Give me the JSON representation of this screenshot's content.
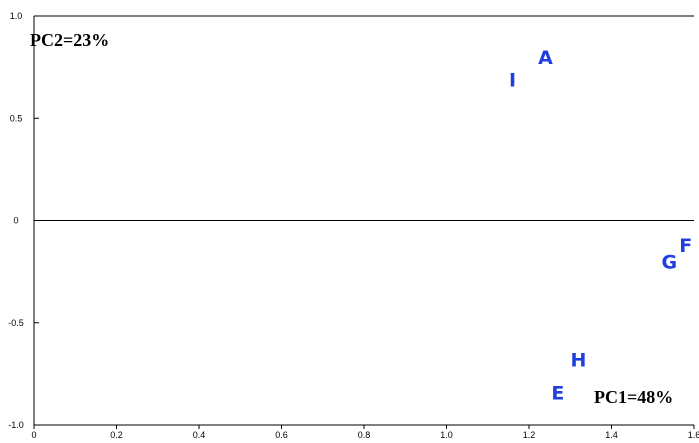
{
  "chart_data": {
    "type": "scatter",
    "title": "",
    "xlabel": "",
    "ylabel": "",
    "xlim": [
      0,
      1.6
    ],
    "ylim": [
      -1.0,
      1.0
    ],
    "x_ticks": [
      0,
      0.2,
      0.4,
      0.6,
      0.8,
      1.0,
      1.2,
      1.4,
      1.6
    ],
    "x_tick_labels": [
      "0",
      "0.2",
      "0.4",
      "0.6",
      "0.8",
      "1.0",
      "1.2",
      "1.4",
      "1.6"
    ],
    "y_ticks": [
      1.0,
      0.5,
      0,
      -0.5,
      -1.0
    ],
    "y_tick_labels": [
      "1.0",
      "0.5",
      "0",
      "-0.5",
      "-1.0"
    ],
    "grid": false,
    "zero_line": true,
    "points": [
      {
        "label": "A",
        "x": 1.24,
        "y": 0.8
      },
      {
        "label": "I",
        "x": 1.16,
        "y": 0.69
      },
      {
        "label": "F",
        "x": 1.58,
        "y": -0.12
      },
      {
        "label": "G",
        "x": 1.54,
        "y": -0.2
      },
      {
        "label": "H",
        "x": 1.32,
        "y": -0.68
      },
      {
        "label": "E",
        "x": 1.27,
        "y": -0.84
      }
    ],
    "annotations": {
      "pc2": "PC2=23%",
      "pc1": "PC1=48%"
    },
    "colors": {
      "points": "#1f3fe0",
      "axes": "#000000"
    }
  }
}
